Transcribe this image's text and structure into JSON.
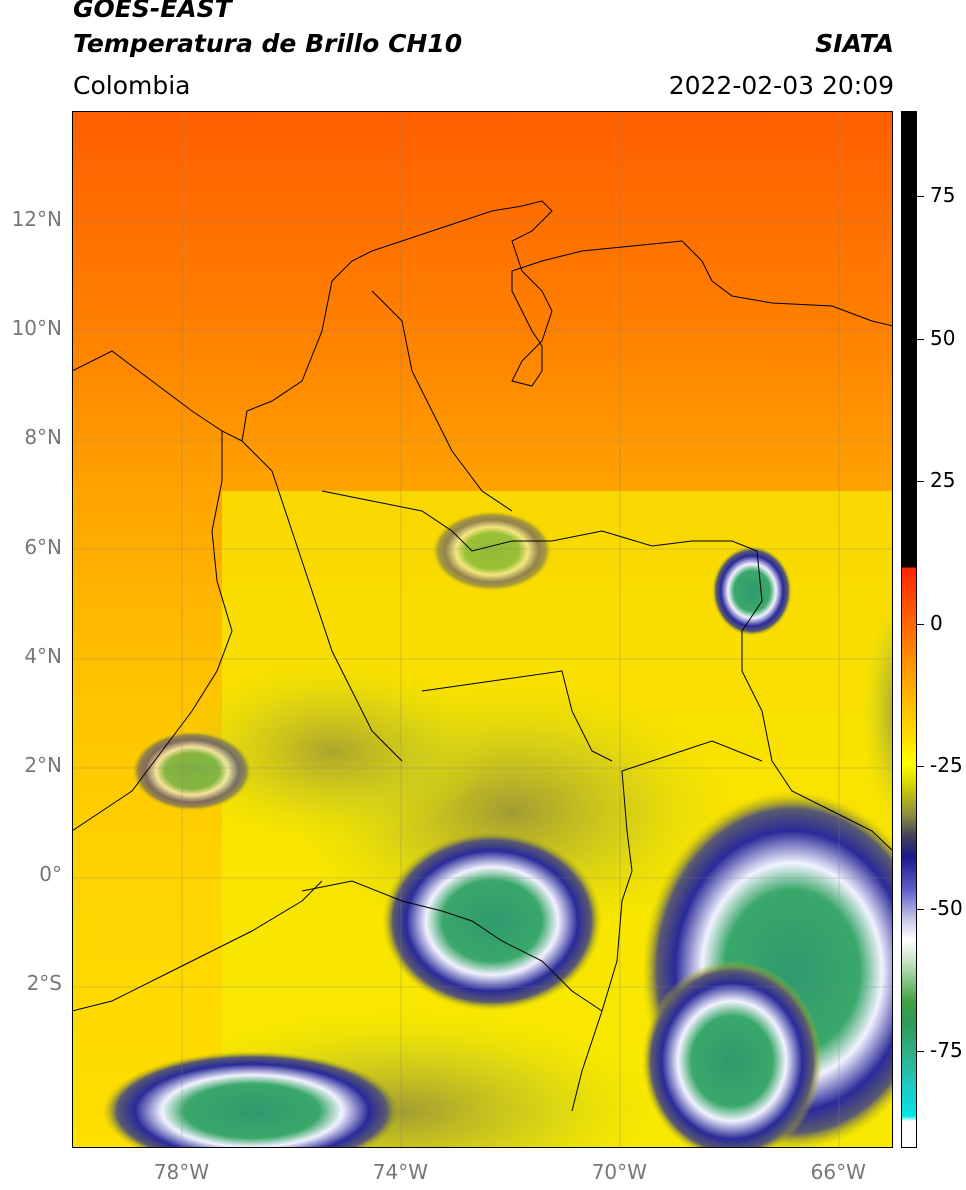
{
  "header": {
    "satellite": "GOES-EAST",
    "product": "Temperatura de Brillo CH10",
    "region": "Colombia",
    "organization": "SIATA",
    "timestamp": "2022-02-03 20:09"
  },
  "map": {
    "latitude_labels": [
      "12°N",
      "10°N",
      "8°N",
      "6°N",
      "4°N",
      "2°N",
      "0°",
      "2°S"
    ],
    "longitude_labels": [
      "78°W",
      "74°W",
      "70°W",
      "66°W"
    ],
    "extent": {
      "lon_min": -80,
      "lon_max": -65,
      "lat_min": -5,
      "lat_max": 14
    },
    "colors": {
      "ocean_warm": "#ff6a00",
      "land_warm": "#ffc800",
      "cold_cloud": "#1a1a8c",
      "coldest_core": "#2e9a6e"
    }
  },
  "colorbar": {
    "tick_labels": [
      "75",
      "50",
      "25",
      "0",
      "-25",
      "-50",
      "-75"
    ],
    "range": [
      -92,
      90
    ]
  }
}
